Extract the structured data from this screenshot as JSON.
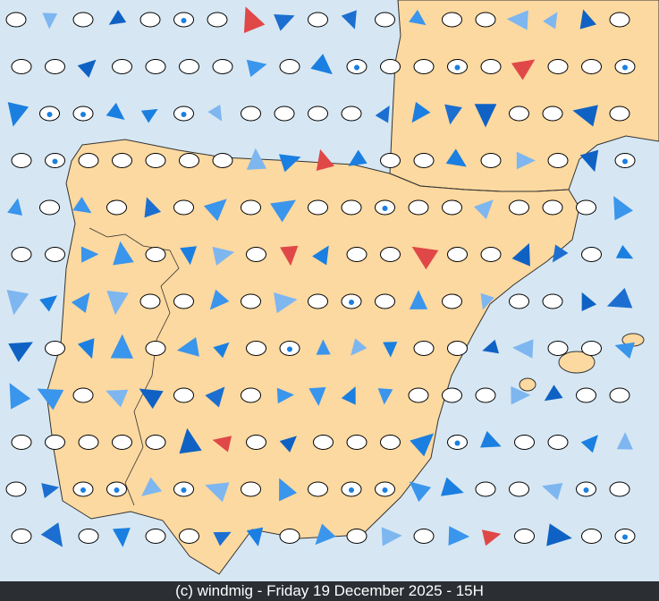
{
  "footer": {
    "credit": "(c) windmig - Friday 19 December 2025 - 15H"
  }
}
